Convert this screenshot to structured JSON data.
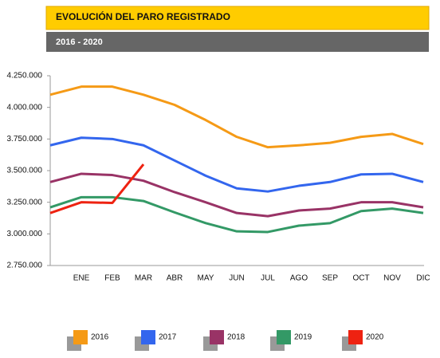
{
  "chart_data": {
    "type": "line",
    "title": "EVOLUCIÓN DEL PARO REGISTRADO",
    "subtitle": "2016 - 2020",
    "categories": [
      null,
      "ENE",
      "FEB",
      "MAR",
      "ABR",
      "MAY",
      "JUN",
      "JUL",
      "AGO",
      "SEP",
      "OCT",
      "NOV",
      "DIC"
    ],
    "ylim": [
      2750000,
      4250000
    ],
    "yticks": [
      {
        "value": 2750000,
        "label": "2.750.000"
      },
      {
        "value": 3000000,
        "label": "3.000.000"
      },
      {
        "value": 3250000,
        "label": "3.250.000"
      },
      {
        "value": 3500000,
        "label": "3.500.000"
      },
      {
        "value": 3750000,
        "label": "3.750.000"
      },
      {
        "value": 4000000,
        "label": "4.000.000"
      },
      {
        "value": 4250000,
        "label": "4.250.000"
      }
    ],
    "grid": false,
    "legend": "bottom",
    "series": [
      {
        "name": "2016",
        "color": "#f59a16",
        "values": [
          4100000,
          4164000,
          4164000,
          4100000,
          4020000,
          3900000,
          3767000,
          3685000,
          3700000,
          3720000,
          3767000,
          3790000,
          3710000
        ]
      },
      {
        "name": "2017",
        "color": "#3366ee",
        "values": [
          3700000,
          3760000,
          3750000,
          3700000,
          3580000,
          3460000,
          3360000,
          3335000,
          3380000,
          3410000,
          3470000,
          3475000,
          3410000
        ]
      },
      {
        "name": "2018",
        "color": "#993366",
        "values": [
          3410000,
          3475000,
          3465000,
          3420000,
          3330000,
          3250000,
          3165000,
          3140000,
          3185000,
          3200000,
          3250000,
          3250000,
          3210000
        ]
      },
      {
        "name": "2019",
        "color": "#339966",
        "values": [
          3210000,
          3290000,
          3290000,
          3260000,
          3170000,
          3085000,
          3020000,
          3015000,
          3065000,
          3085000,
          3180000,
          3200000,
          3165000
        ]
      },
      {
        "name": "2020",
        "color": "#ee2211",
        "values": [
          3165000,
          3250000,
          3245000,
          3550000,
          null,
          null,
          null,
          null,
          null,
          null,
          null,
          null,
          null
        ]
      }
    ]
  }
}
